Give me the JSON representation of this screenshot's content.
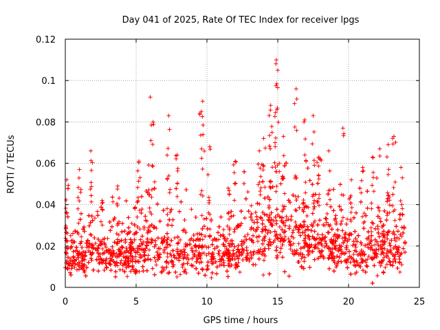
{
  "chart_data": {
    "type": "scatter",
    "title": "Day 041 of 2025, Rate Of TEC Index for receiver lpgs",
    "xlabel": "GPS time / hours",
    "ylabel": "ROTI / TECUs",
    "xlim": [
      0,
      25
    ],
    "ylim": [
      0,
      0.12
    ],
    "xticks": [
      "0",
      "5",
      "10",
      "15",
      "20",
      "25"
    ],
    "yticks": [
      "0",
      "0.02",
      "0.04",
      "0.06",
      "0.08",
      "0.1",
      "0.12"
    ],
    "grid": true,
    "marker": "+",
    "color": "#ff0000",
    "series": [
      {
        "name": "ROTI",
        "x_start": 0.0,
        "x_end": 24.0,
        "baseline_profile_hours": [
          0,
          2,
          4,
          6,
          8,
          10,
          12,
          13.5,
          15,
          16.5,
          18,
          20,
          22,
          24
        ],
        "baseline_profile_values": [
          0.014,
          0.015,
          0.015,
          0.016,
          0.016,
          0.016,
          0.016,
          0.019,
          0.026,
          0.022,
          0.02,
          0.018,
          0.017,
          0.016
        ],
        "peaks": [
          {
            "x": 0.1,
            "y": 0.052
          },
          {
            "x": 1.0,
            "y": 0.057
          },
          {
            "x": 1.8,
            "y": 0.066
          },
          {
            "x": 2.6,
            "y": 0.042
          },
          {
            "x": 3.7,
            "y": 0.049
          },
          {
            "x": 5.2,
            "y": 0.061
          },
          {
            "x": 6.0,
            "y": 0.092
          },
          {
            "x": 6.2,
            "y": 0.08
          },
          {
            "x": 7.3,
            "y": 0.083
          },
          {
            "x": 7.9,
            "y": 0.064
          },
          {
            "x": 9.7,
            "y": 0.09
          },
          {
            "x": 9.6,
            "y": 0.085
          },
          {
            "x": 10.2,
            "y": 0.068
          },
          {
            "x": 11.5,
            "y": 0.048
          },
          {
            "x": 12.0,
            "y": 0.061
          },
          {
            "x": 13.7,
            "y": 0.066
          },
          {
            "x": 14.0,
            "y": 0.072
          },
          {
            "x": 14.5,
            "y": 0.088
          },
          {
            "x": 14.9,
            "y": 0.11
          },
          {
            "x": 15.0,
            "y": 0.105
          },
          {
            "x": 15.4,
            "y": 0.073
          },
          {
            "x": 16.3,
            "y": 0.096
          },
          {
            "x": 16.9,
            "y": 0.081
          },
          {
            "x": 17.5,
            "y": 0.083
          },
          {
            "x": 17.9,
            "y": 0.063
          },
          {
            "x": 18.6,
            "y": 0.066
          },
          {
            "x": 19.6,
            "y": 0.077
          },
          {
            "x": 20.2,
            "y": 0.052
          },
          {
            "x": 21.0,
            "y": 0.058
          },
          {
            "x": 21.7,
            "y": 0.063
          },
          {
            "x": 22.2,
            "y": 0.067
          },
          {
            "x": 22.8,
            "y": 0.069
          },
          {
            "x": 23.2,
            "y": 0.073
          },
          {
            "x": 23.7,
            "y": 0.058
          }
        ]
      }
    ]
  }
}
